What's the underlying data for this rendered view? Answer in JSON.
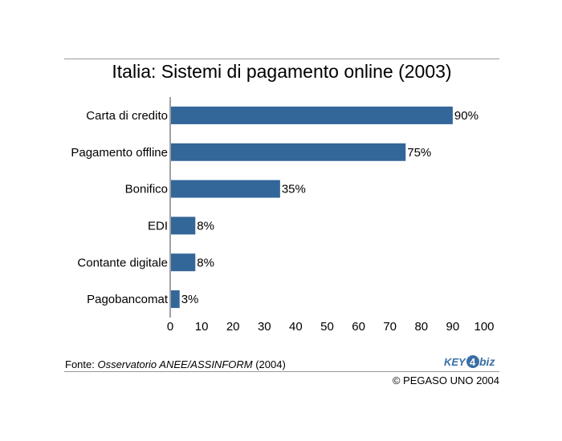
{
  "header": {
    "title": "Italia: Sistemi di pagamento online (2003)"
  },
  "footer": {
    "source_prefix": "Fonte: ",
    "source_name": "Osservatorio ANEE/ASSINFORM",
    "source_year": " (2004)",
    "copyright": "© PEGASO UNO 2004",
    "logo_text_1": "KEY",
    "logo_text_2": "4",
    "logo_text_3": "biz"
  },
  "colors": {
    "bar": "#336699",
    "axis": "#808080",
    "rule": "#9a9a9a",
    "logo": "#3a6ea5"
  },
  "chart_data": {
    "type": "bar",
    "orientation": "horizontal",
    "title": "Italia: Sistemi di pagamento online (2003)",
    "categories": [
      "Carta di credito",
      "Pagamento offline",
      "Bonifico",
      "EDI",
      "Contante digitale",
      "Pagobancomat"
    ],
    "values": [
      90,
      75,
      35,
      8,
      8,
      3
    ],
    "data_labels": [
      "90%",
      "75%",
      "35%",
      "8%",
      "8%",
      "3%"
    ],
    "xlim": [
      0,
      100
    ],
    "xticks": [
      0,
      10,
      20,
      30,
      40,
      50,
      60,
      70,
      80,
      90,
      100
    ],
    "xlabel": "",
    "ylabel": "",
    "grid": false,
    "legend": "none"
  }
}
